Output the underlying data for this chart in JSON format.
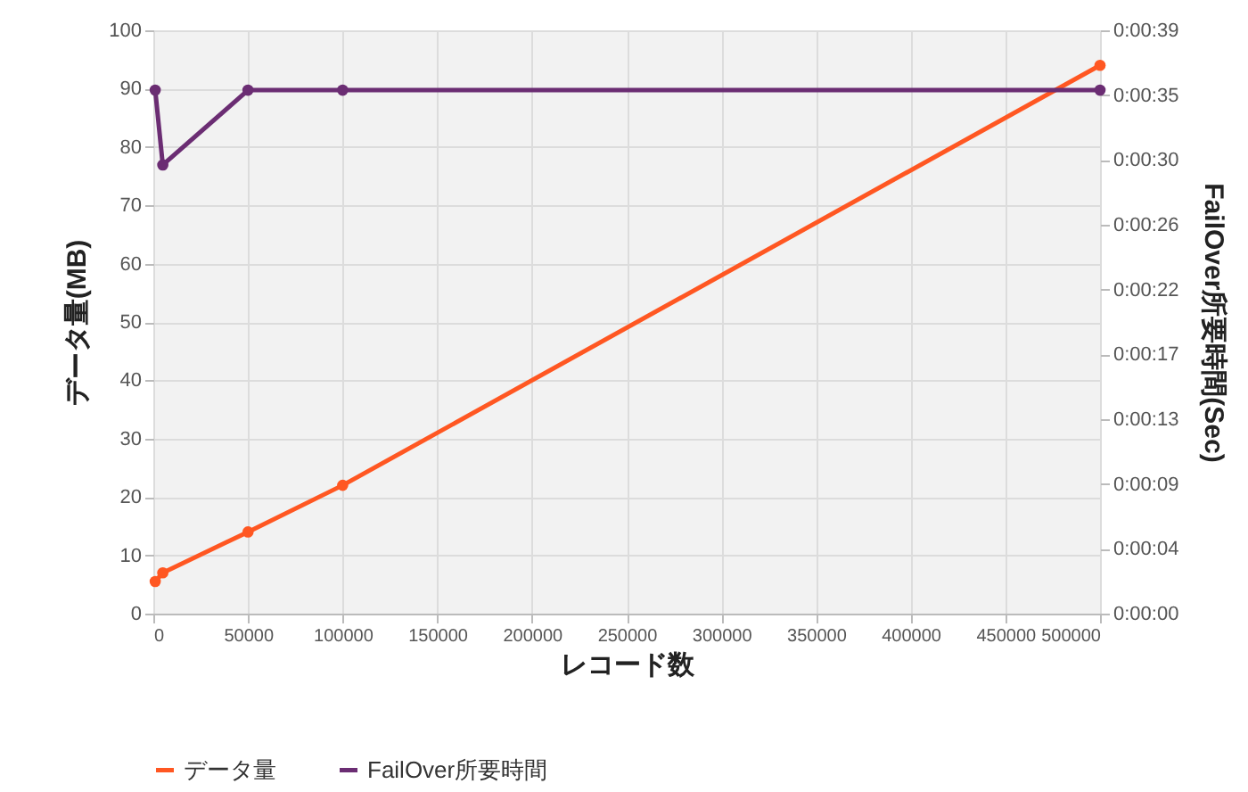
{
  "chart_data": {
    "type": "line",
    "xlabel": "レコード数",
    "ylabel": "データ量(MB)",
    "y2label": "FailOver所要時間(Sec)",
    "x": [
      1000,
      5000,
      50000,
      100000,
      500000
    ],
    "series": [
      {
        "name": "データ量",
        "color": "#ff5722",
        "values": [
          5.5,
          7,
          14,
          22,
          94
        ]
      },
      {
        "name": "FailOver所要時間",
        "color": "#6b2d73",
        "axis": "y2",
        "values": [
          35,
          30,
          35,
          35,
          35
        ]
      }
    ],
    "xlim": [
      0,
      500000
    ],
    "xticks": [
      0,
      50000,
      100000,
      150000,
      200000,
      250000,
      300000,
      350000,
      400000,
      450000,
      500000
    ],
    "ylim": [
      0,
      100
    ],
    "yticks": [
      0,
      10,
      20,
      30,
      40,
      50,
      60,
      70,
      80,
      90,
      100
    ],
    "y2lim": [
      0,
      39
    ],
    "y2ticks": [
      {
        "value": 0,
        "label": "0:00:00"
      },
      {
        "value": 4.333,
        "label": "0:00:04"
      },
      {
        "value": 8.667,
        "label": "0:00:09"
      },
      {
        "value": 13,
        "label": "0:00:13"
      },
      {
        "value": 17.333,
        "label": "0:00:17"
      },
      {
        "value": 21.667,
        "label": "0:00:22"
      },
      {
        "value": 26,
        "label": "0:00:26"
      },
      {
        "value": 30.333,
        "label": "0:00:30"
      },
      {
        "value": 34.667,
        "label": "0:00:35"
      },
      {
        "value": 39,
        "label": "0:00:39"
      }
    ],
    "grid": true,
    "legend": "bottom",
    "marker": "circle",
    "line_style": "solid"
  }
}
